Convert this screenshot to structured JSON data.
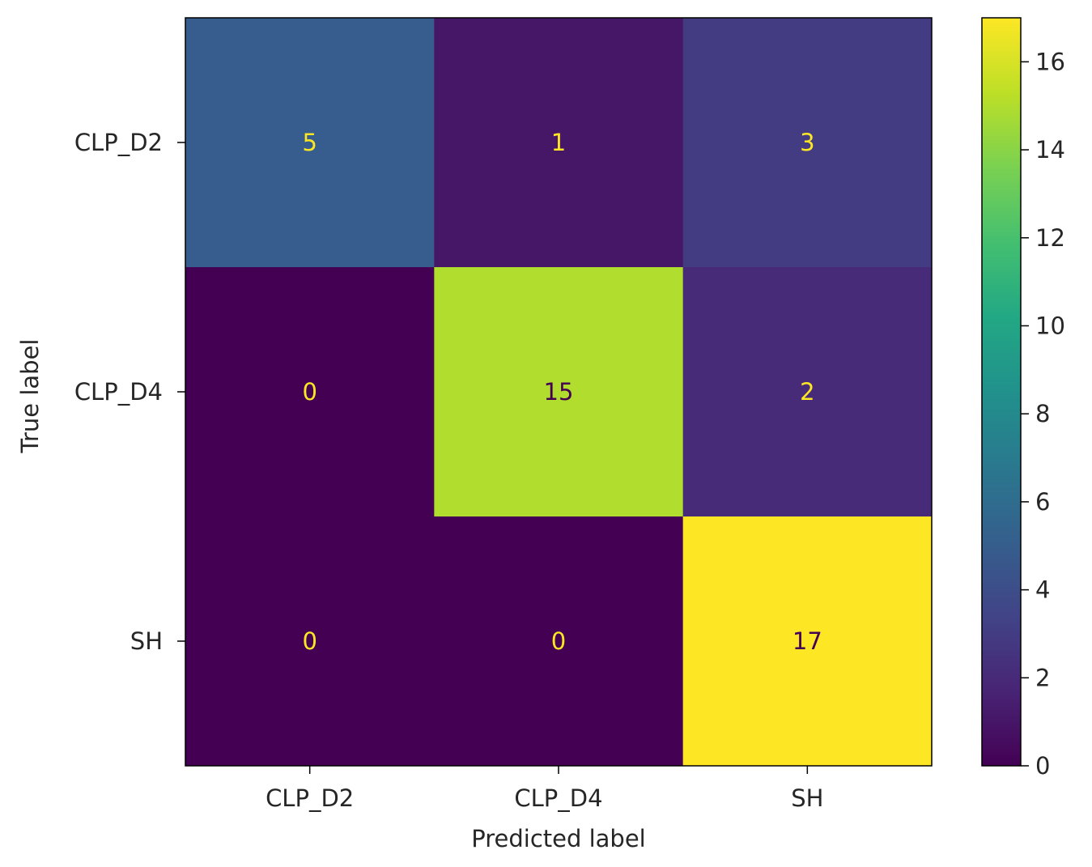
{
  "chart_data": {
    "type": "heatmap",
    "title": "",
    "xlabel": "Predicted label",
    "ylabel": "True label",
    "x_categories": [
      "CLP_D2",
      "CLP_D4",
      "SH"
    ],
    "y_categories": [
      "CLP_D2",
      "CLP_D4",
      "SH"
    ],
    "matrix": [
      [
        5,
        1,
        3
      ],
      [
        0,
        15,
        2
      ],
      [
        0,
        0,
        17
      ]
    ],
    "colormap": "viridis",
    "colorbar": {
      "range": [
        0,
        17
      ],
      "ticks": [
        0,
        2,
        4,
        6,
        8,
        10,
        12,
        14,
        16
      ]
    },
    "text_colors": {
      "on_dark": "#fde725",
      "on_light": "#440154"
    },
    "grid": false,
    "legend": "colorbar-right"
  }
}
